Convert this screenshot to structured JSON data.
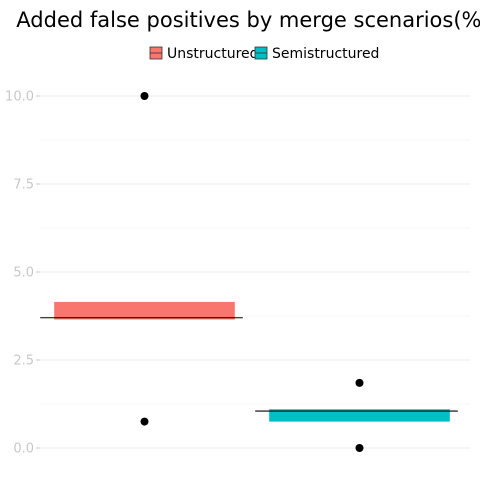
{
  "chart_data": {
    "type": "box",
    "title": "Added false positives by merge scenarios(%)",
    "xlabel": "",
    "ylabel": "",
    "ylim": [
      -0.2,
      10.6
    ],
    "y_ticks": [
      0.0,
      2.5,
      5.0,
      7.5,
      10.0
    ],
    "y_tick_labels": [
      "0.0",
      "2.5",
      "5.0",
      "7.5",
      "10.0"
    ],
    "grid": true,
    "legend_position": "top",
    "series": [
      {
        "name": "Unstructured",
        "color": "#F8766D",
        "q1": 3.65,
        "median": 3.7,
        "q3": 4.15,
        "outliers": [
          10.0,
          0.75
        ]
      },
      {
        "name": "Semistructured",
        "color": "#00BFC4",
        "q1": 0.75,
        "median": 1.05,
        "q3": 1.1,
        "outliers": [
          1.85,
          0.0
        ]
      }
    ]
  }
}
